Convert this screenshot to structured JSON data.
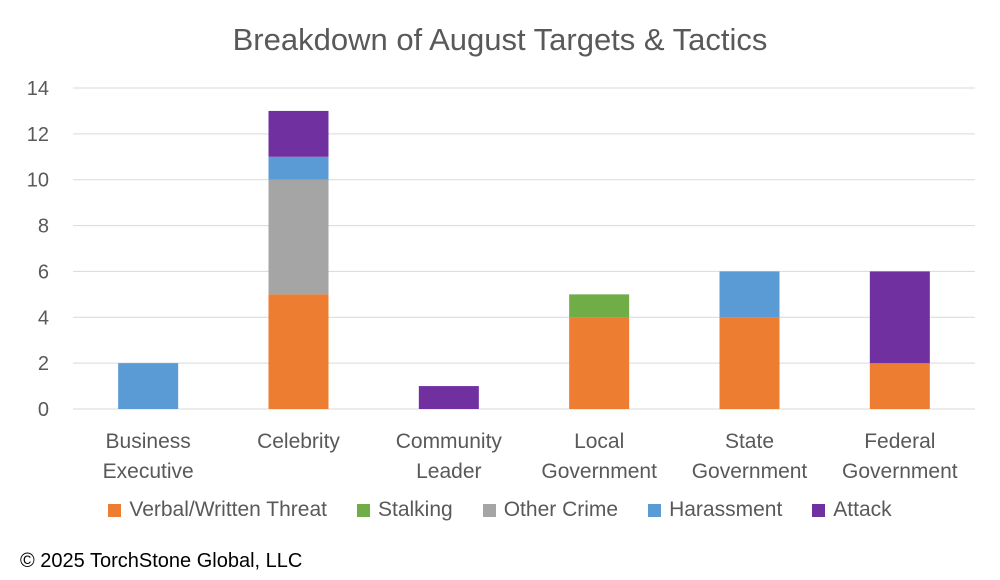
{
  "chart_data": {
    "type": "bar",
    "stacked": true,
    "title": "Breakdown of August Targets & Tactics",
    "categories": [
      [
        "Business",
        "Executive"
      ],
      [
        "Celebrity"
      ],
      [
        "Community",
        "Leader"
      ],
      [
        "Local",
        "Government"
      ],
      [
        "State",
        "Government"
      ],
      [
        "Federal",
        "Government"
      ]
    ],
    "series": [
      {
        "name": "Verbal/Written Threat",
        "color": "#ED7D31",
        "values": [
          0,
          5,
          0,
          4,
          4,
          2
        ]
      },
      {
        "name": "Stalking",
        "color": "#70AD47",
        "values": [
          0,
          0,
          0,
          1,
          0,
          0
        ]
      },
      {
        "name": "Other Crime",
        "color": "#A5A5A5",
        "values": [
          0,
          5,
          0,
          0,
          0,
          0
        ]
      },
      {
        "name": "Harassment",
        "color": "#5B9BD5",
        "values": [
          2,
          1,
          0,
          0,
          2,
          0
        ]
      },
      {
        "name": "Attack",
        "color": "#7030A0",
        "values": [
          0,
          2,
          1,
          0,
          0,
          4
        ]
      }
    ],
    "ylim": [
      0,
      14
    ],
    "yticks": [
      0,
      2,
      4,
      6,
      8,
      10,
      12,
      14
    ],
    "grid": true,
    "legend": "bottom",
    "xlabel": "",
    "ylabel": ""
  },
  "footer": {
    "copyright": "© 2025 TorchStone Global, LLC"
  },
  "colors": {
    "gridline": "#D9D9D9",
    "axis_text": "#595959"
  }
}
